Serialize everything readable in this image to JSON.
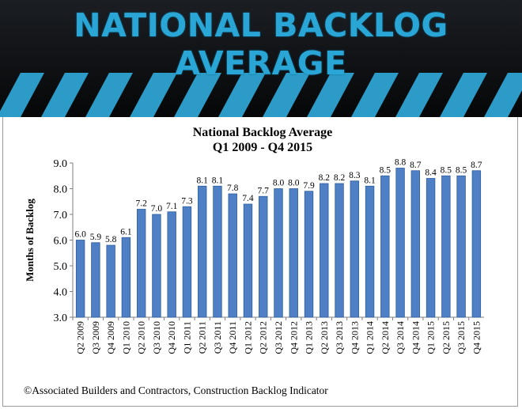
{
  "banner": {
    "title": "NATIONAL BACKLOG AVERAGE"
  },
  "credit": "©Associated Builders and Contractors, Construction Backlog Indicator",
  "colors": {
    "bar": "#4f7fc4",
    "bar_edge": "#2f5f9f",
    "banner_text": "#2aa6d6",
    "stripe": "#2ea3d2"
  },
  "chart_data": {
    "type": "bar",
    "title": "National Backlog Average",
    "subtitle": "Q1 2009 - Q4 2015",
    "xlabel": "",
    "ylabel": "Months of Backlog",
    "ylim": [
      3.0,
      9.0
    ],
    "yticks": [
      "3.0",
      "4.0",
      "5.0",
      "6.0",
      "7.0",
      "8.0",
      "9.0"
    ],
    "grid": false,
    "categories": [
      "Q2 2009",
      "Q3 2009",
      "Q4 2009",
      "Q1 2010",
      "Q2 2010",
      "Q3 2010",
      "Q4 2010",
      "Q1 2011",
      "Q2 2011",
      "Q3 2011",
      "Q4 2011",
      "Q1 2012",
      "Q2 2012",
      "Q3 2012",
      "Q4 2012",
      "Q1 2013",
      "Q2 2013",
      "Q3 2013",
      "Q4 2013",
      "Q1 2014",
      "Q2 2014",
      "Q3 2014",
      "Q4 2014",
      "Q1 2015",
      "Q2 2015",
      "Q3 2015",
      "Q4 2015"
    ],
    "values": [
      6.0,
      5.9,
      5.8,
      6.1,
      7.2,
      7.0,
      7.1,
      7.3,
      8.1,
      8.1,
      7.8,
      7.4,
      7.7,
      8.0,
      8.0,
      7.9,
      8.2,
      8.2,
      8.3,
      8.1,
      8.5,
      8.8,
      8.7,
      8.4,
      8.5,
      8.5,
      8.7
    ],
    "labels": [
      "6.0",
      "5.9",
      "5.8",
      "6.1",
      "7.2",
      "7.0",
      "7.1",
      "7.3",
      "8.1",
      "8.1",
      "7.8",
      "7.4",
      "7.7",
      "8.0",
      "8.0",
      "7.9",
      "8.2",
      "8.2",
      "8.3",
      "8.1",
      "8.5",
      "8.8",
      "8.7",
      "8.4",
      "8.5",
      "8.5",
      "8.7"
    ]
  }
}
